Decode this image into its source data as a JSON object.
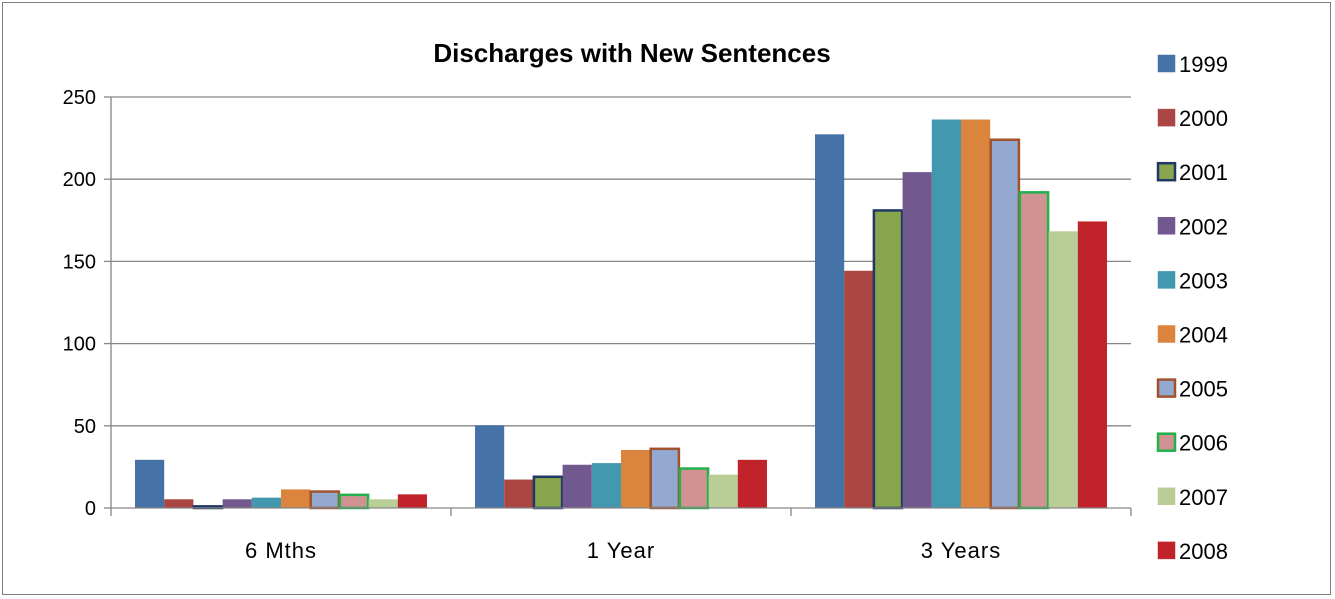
{
  "chart_data": {
    "type": "bar",
    "title": "Discharges with New Sentences",
    "xlabel": "",
    "ylabel": "",
    "ylim": [
      0,
      250
    ],
    "yticks": [
      0,
      50,
      100,
      150,
      200,
      250
    ],
    "grid": true,
    "legend_position": "right",
    "categories": [
      "6 Mths",
      "1 Year",
      "3 Years"
    ],
    "series": [
      {
        "name": "1999",
        "color": "#4572A7",
        "border": "#4572A7",
        "values": [
          29,
          50,
          227
        ]
      },
      {
        "name": "2000",
        "color": "#AA4643",
        "border": "#AA4643",
        "values": [
          5,
          17,
          144
        ]
      },
      {
        "name": "2001",
        "color": "#89A54E",
        "border": "#1F3864",
        "values": [
          1,
          19,
          181
        ]
      },
      {
        "name": "2002",
        "color": "#71588F",
        "border": "#71588F",
        "values": [
          5,
          26,
          204
        ]
      },
      {
        "name": "2003",
        "color": "#4198AF",
        "border": "#4198AF",
        "values": [
          6,
          27,
          236
        ]
      },
      {
        "name": "2004",
        "color": "#DB843D",
        "border": "#DB843D",
        "values": [
          11,
          35,
          236
        ]
      },
      {
        "name": "2005",
        "color": "#93A9CF",
        "border": "#A0522D",
        "values": [
          10,
          36,
          224
        ]
      },
      {
        "name": "2006",
        "color": "#D19392",
        "border": "#22B14C",
        "values": [
          8,
          24,
          192
        ]
      },
      {
        "name": "2007",
        "color": "#B9CD96",
        "border": "#B9CD96",
        "values": [
          5,
          20,
          168
        ]
      },
      {
        "name": "2008",
        "color": "#C0232A",
        "border": "#C0232A",
        "values": [
          8,
          29,
          174
        ]
      }
    ]
  }
}
